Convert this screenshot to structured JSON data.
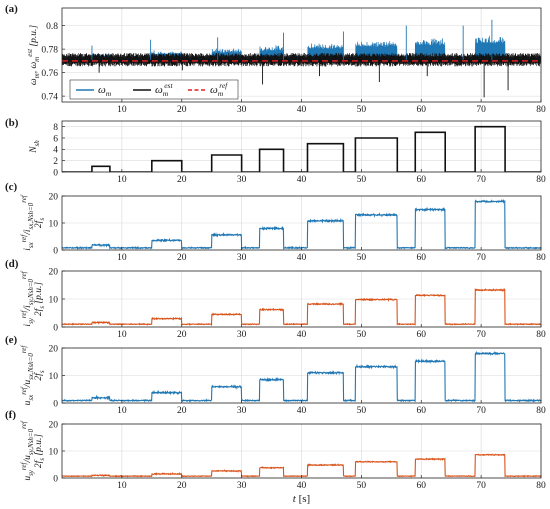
{
  "colors": {
    "blue": "#1f77b4",
    "black": "#111111",
    "red": "#e02020",
    "orange": "#d95319",
    "grid": "#d9d9d9"
  },
  "chart_data": [
    {
      "panel": "(a)",
      "type": "line",
      "ylabel": "ω_m, ω_m^est [p.u.]",
      "xlim": [
        0,
        80
      ],
      "ylim": [
        0.735,
        0.815
      ],
      "yticks": [
        "0.8",
        "0.78",
        "0.76",
        "0.74"
      ],
      "ytick_values": [
        0.8,
        0.78,
        0.76,
        0.74
      ],
      "xticks": [
        "10",
        "20",
        "30",
        "40",
        "50",
        "60",
        "70",
        "80"
      ],
      "grid": true,
      "legend": {
        "placement": "bottom-left",
        "entries": [
          {
            "label": "ω_m",
            "color": "#1f77b4",
            "style": "solid"
          },
          {
            "label": "ω_m^est",
            "color": "#111111",
            "style": "solid"
          },
          {
            "label": "ω_m^ref",
            "color": "#e02020",
            "style": "dashed"
          }
        ]
      },
      "series": [
        {
          "name": "ω_m",
          "x": [
            0,
            80
          ],
          "baseline": 0.771,
          "ripple": 0.0042,
          "step_increase": 0.0045,
          "spikes": [
            {
              "t": 5.0,
              "v": 0.783
            },
            {
              "t": 6.2,
              "v": 0.76
            },
            {
              "t": 14.8,
              "v": 0.788
            },
            {
              "t": 20.1,
              "v": 0.762
            },
            {
              "t": 26.0,
              "v": 0.79
            },
            {
              "t": 33.5,
              "v": 0.75
            },
            {
              "t": 37.0,
              "v": 0.794
            },
            {
              "t": 43.0,
              "v": 0.757
            },
            {
              "t": 47.0,
              "v": 0.795
            },
            {
              "t": 53.0,
              "v": 0.752
            },
            {
              "t": 57.5,
              "v": 0.8
            },
            {
              "t": 61.0,
              "v": 0.757
            },
            {
              "t": 67.0,
              "v": 0.8
            },
            {
              "t": 70.5,
              "v": 0.739
            },
            {
              "t": 71.8,
              "v": 0.805
            },
            {
              "t": 74.5,
              "v": 0.745
            }
          ]
        },
        {
          "name": "ω_m^est",
          "x": [
            0,
            80
          ],
          "baseline": 0.771,
          "ripple": 0.0052
        },
        {
          "name": "ω_m^ref",
          "x": [
            0,
            80
          ],
          "y": [
            0.77,
            0.77
          ]
        }
      ]
    },
    {
      "panel": "(b)",
      "type": "line",
      "ylabel": "N_sh",
      "xlim": [
        0,
        80
      ],
      "ylim": [
        0,
        9
      ],
      "yticks": [
        "8",
        "6",
        "4",
        "2",
        "0"
      ],
      "ytick_values": [
        8,
        6,
        4,
        2,
        0
      ],
      "xticks": [
        "10",
        "20",
        "30",
        "40",
        "50",
        "60",
        "70",
        "80"
      ],
      "grid": true,
      "series": [
        {
          "name": "N_sh",
          "x": [
            0,
            5,
            5,
            8,
            8,
            15,
            15,
            20,
            20,
            25,
            25,
            30,
            30,
            33,
            33,
            37,
            37,
            41,
            41,
            47,
            47,
            49,
            49,
            56,
            56,
            59,
            59,
            64,
            64,
            69,
            69,
            74,
            74,
            80
          ],
          "y": [
            0,
            0,
            1,
            1,
            0,
            0,
            2,
            2,
            0,
            0,
            3,
            3,
            0,
            0,
            4,
            4,
            0,
            0,
            5,
            5,
            0,
            0,
            6,
            6,
            0,
            0,
            7,
            7,
            0,
            0,
            8,
            8,
            0,
            0
          ]
        }
      ]
    },
    {
      "panel": "(c)",
      "type": "line",
      "ylabel": "i_sx^ref / i_sx,Nsh=0^ref 2f_s",
      "xlim": [
        0,
        80
      ],
      "ylim": [
        0,
        20
      ],
      "yticks": [
        "20",
        "10",
        "0"
      ],
      "ytick_values": [
        20,
        10,
        0
      ],
      "xticks": [
        "10",
        "20",
        "30",
        "40",
        "50",
        "60",
        "70",
        "80"
      ],
      "grid": true,
      "series": [
        {
          "name": "c",
          "color": "#1f77b4",
          "base": 0.8,
          "noise": 0.5,
          "pulses": [
            [
              5,
              8,
              1.8
            ],
            [
              15,
              20,
              3.6
            ],
            [
              25,
              30,
              5.6
            ],
            [
              33,
              37,
              8.0
            ],
            [
              41,
              47,
              10.8
            ],
            [
              49,
              56,
              13.0
            ],
            [
              59,
              64,
              15.0
            ],
            [
              69,
              74,
              18.0
            ]
          ]
        }
      ]
    },
    {
      "panel": "(d)",
      "type": "line",
      "ylabel": "i_sy^ref / i_sy,Nsh=0^ref 2f_s [p.u.]",
      "xlim": [
        0,
        80
      ],
      "ylim": [
        0,
        20
      ],
      "yticks": [
        "20",
        "10",
        "0"
      ],
      "ytick_values": [
        20,
        10,
        0
      ],
      "xticks": [
        "10",
        "20",
        "30",
        "40",
        "50",
        "60",
        "70",
        "80"
      ],
      "grid": true,
      "series": [
        {
          "name": "d",
          "color": "#d95319",
          "base": 1.0,
          "noise": 0.35,
          "pulses": [
            [
              5,
              8,
              1.6
            ],
            [
              15,
              20,
              3.0
            ],
            [
              25,
              30,
              4.5
            ],
            [
              33,
              37,
              6.2
            ],
            [
              41,
              47,
              8.2
            ],
            [
              49,
              56,
              9.8
            ],
            [
              59,
              64,
              11.3
            ],
            [
              69,
              74,
              13.2
            ]
          ]
        }
      ]
    },
    {
      "panel": "(e)",
      "type": "line",
      "ylabel": "u_sx^ref / u_sx,Nsh=0^ref 2f_s",
      "xlim": [
        0,
        80
      ],
      "ylim": [
        0,
        20
      ],
      "yticks": [
        "20",
        "10",
        "0"
      ],
      "ytick_values": [
        20,
        10,
        0
      ],
      "xticks": [
        "10",
        "20",
        "30",
        "40",
        "50",
        "60",
        "70",
        "80"
      ],
      "grid": true,
      "series": [
        {
          "name": "e",
          "color": "#1f77b4",
          "base": 0.9,
          "noise": 0.5,
          "pulses": [
            [
              5,
              8,
              1.9
            ],
            [
              15,
              20,
              3.8
            ],
            [
              25,
              30,
              5.9
            ],
            [
              33,
              37,
              8.5
            ],
            [
              41,
              47,
              11.0
            ],
            [
              49,
              56,
              13.2
            ],
            [
              59,
              64,
              15.2
            ],
            [
              69,
              74,
              18.0
            ]
          ]
        }
      ]
    },
    {
      "panel": "(f)",
      "type": "line",
      "ylabel": "u_sy^ref / u_sy,Nsh=0^ref 2f_s [p.u.]",
      "xlim": [
        0,
        80
      ],
      "ylim": [
        0,
        20
      ],
      "yticks": [
        "20",
        "10",
        "0"
      ],
      "ytick_values": [
        20,
        10,
        0
      ],
      "xticks": [
        "10",
        "20",
        "30",
        "40",
        "50",
        "60",
        "70",
        "80"
      ],
      "xlabel": "t [s]",
      "grid": true,
      "series": [
        {
          "name": "f",
          "color": "#d95319",
          "base": 0.7,
          "noise": 0.3,
          "pulses": [
            [
              5,
              8,
              1.0
            ],
            [
              15,
              20,
              1.5
            ],
            [
              25,
              30,
              2.6
            ],
            [
              33,
              37,
              3.8
            ],
            [
              41,
              47,
              4.8
            ],
            [
              49,
              56,
              6.0
            ],
            [
              59,
              64,
              7.0
            ],
            [
              69,
              74,
              8.6
            ]
          ]
        }
      ]
    }
  ]
}
